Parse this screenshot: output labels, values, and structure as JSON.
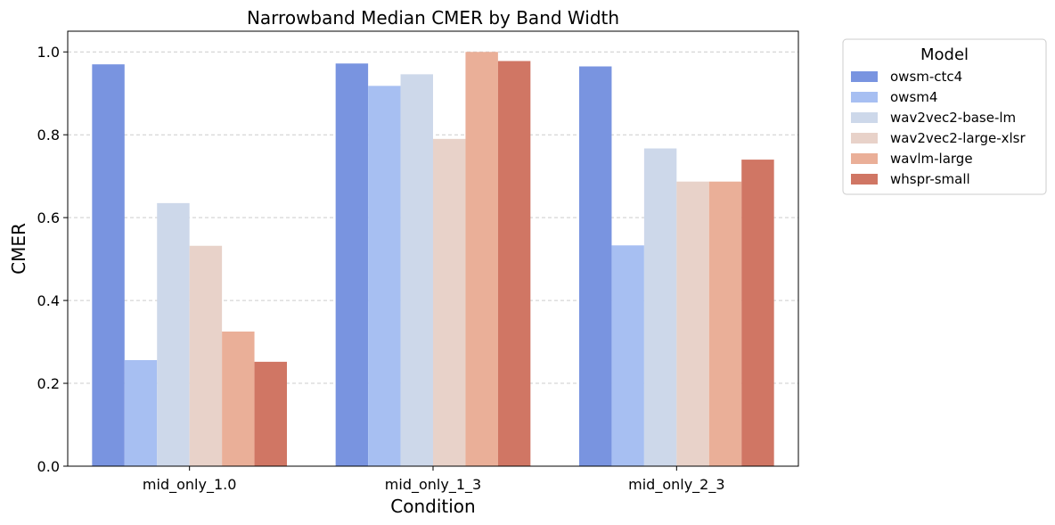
{
  "chart_data": {
    "type": "bar",
    "title": "Narrowband Median CMER by Band Width",
    "xlabel": "Condition",
    "ylabel": "CMER",
    "categories": [
      "mid_only_1.0",
      "mid_only_1_3",
      "mid_only_2_3"
    ],
    "ylim": [
      0,
      1.05
    ],
    "yticks": [
      0.0,
      0.2,
      0.4,
      0.6,
      0.8,
      1.0
    ],
    "ytick_labels": [
      "0.0",
      "0.2",
      "0.4",
      "0.6",
      "0.8",
      "1.0"
    ],
    "grid": "y-dashed",
    "legend": {
      "title": "Model",
      "placement": "outside-right-top"
    },
    "series": [
      {
        "name": "owsm-ctc4",
        "color": "#7994e0",
        "values": [
          0.97,
          0.972,
          0.965
        ]
      },
      {
        "name": "owsm4",
        "color": "#a7bff2",
        "values": [
          0.256,
          0.918,
          0.533
        ]
      },
      {
        "name": "wav2vec2-base-lm",
        "color": "#cdd8ea",
        "values": [
          0.635,
          0.946,
          0.767
        ]
      },
      {
        "name": "wav2vec2-large-xlsr",
        "color": "#e8d2c9",
        "values": [
          0.532,
          0.79,
          0.687
        ]
      },
      {
        "name": "wavlm-large",
        "color": "#eaaf98",
        "values": [
          0.325,
          1.0,
          0.687
        ]
      },
      {
        "name": "whspr-small",
        "color": "#d07664",
        "values": [
          0.252,
          0.978,
          0.74
        ]
      }
    ]
  }
}
